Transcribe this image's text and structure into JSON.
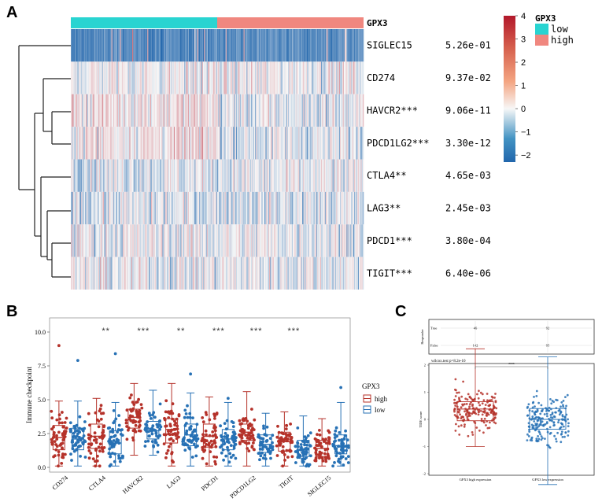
{
  "chart_data": [
    {
      "panel": "A",
      "type": "heatmap",
      "annotation_title": "GPX3",
      "annotation_legend": [
        {
          "label": "low",
          "color": "#29d4d1"
        },
        {
          "label": "high",
          "color": "#f0877f"
        }
      ],
      "rows": [
        {
          "label": "SIGLEC15",
          "pvalue": "5.26e-01"
        },
        {
          "label": "CD274",
          "pvalue": "9.37e-02"
        },
        {
          "label": "HAVCR2***",
          "pvalue": "9.06e-11"
        },
        {
          "label": "PDCD1LG2***",
          "pvalue": "3.30e-12"
        },
        {
          "label": "CTLA4**",
          "pvalue": "4.65e-03"
        },
        {
          "label": "LAG3**",
          "pvalue": "2.45e-03"
        },
        {
          "label": "PDCD1***",
          "pvalue": "3.80e-04"
        },
        {
          "label": "TIGIT***",
          "pvalue": "6.40e-06"
        }
      ],
      "color_scale": {
        "min": -2.3,
        "max": 4,
        "ticks": [
          "4",
          "3",
          "2",
          "1",
          "0",
          "−1",
          "−2"
        ],
        "low_color": "#2166ac",
        "mid_color": "#f7f7f7",
        "high_color": "#b2182b"
      },
      "row_means": [
        -1.6,
        0.1,
        0.2,
        0.15,
        -0.15,
        -0.25,
        0.0,
        -0.05
      ]
    },
    {
      "panel": "B",
      "type": "box",
      "ylabel": "Immune checkpoint",
      "y_ticks": [
        "0.0",
        "2.5",
        "5.0",
        "7.5",
        "10.0"
      ],
      "ylim": [
        0,
        10.5
      ],
      "legend_title": "GPX3",
      "legend": [
        {
          "label": "high",
          "color": "#b5322a"
        },
        {
          "label": "low",
          "color": "#2771b5"
        }
      ],
      "categories": [
        "CD274",
        "CTLA4",
        "HAVCR2",
        "LAG3",
        "PDCD1",
        "PDCD1LG2",
        "TIGIT",
        "SIGLEC15"
      ],
      "significance": [
        "",
        "**",
        "***",
        "**",
        "***",
        "***",
        "***",
        ""
      ],
      "series": [
        {
          "name": "high",
          "boxes": [
            {
              "whislo": 0.1,
              "q1": 1.3,
              "med": 2.2,
              "q3": 3.1,
              "whishi": 4.9,
              "max": 9.0
            },
            {
              "whislo": 0.1,
              "q1": 1.4,
              "med": 2.3,
              "q3": 3.2,
              "whishi": 5.1,
              "max": 5.1
            },
            {
              "whislo": 0.9,
              "q1": 2.9,
              "med": 3.7,
              "q3": 4.3,
              "whishi": 6.2,
              "max": 6.2
            },
            {
              "whislo": 0.1,
              "q1": 1.8,
              "med": 2.8,
              "q3": 3.6,
              "whishi": 6.2,
              "max": 6.2
            },
            {
              "whislo": 0.1,
              "q1": 1.5,
              "med": 2.3,
              "q3": 3.2,
              "whishi": 5.2,
              "max": 5.2
            },
            {
              "whislo": 0.1,
              "q1": 2.0,
              "med": 2.6,
              "q3": 3.2,
              "whishi": 5.6,
              "max": 5.6
            },
            {
              "whislo": 0.1,
              "q1": 1.2,
              "med": 1.9,
              "q3": 2.6,
              "whishi": 4.1,
              "max": 4.1
            },
            {
              "whislo": 0.1,
              "q1": 0.8,
              "med": 1.4,
              "q3": 2.0,
              "whishi": 3.6,
              "max": 3.6
            }
          ]
        },
        {
          "name": "low",
          "boxes": [
            {
              "whislo": 0.1,
              "q1": 1.3,
              "med": 2.1,
              "q3": 2.9,
              "whishi": 4.9,
              "max": 7.9
            },
            {
              "whislo": 0.1,
              "q1": 1.0,
              "med": 1.8,
              "q3": 2.7,
              "whishi": 4.8,
              "max": 8.4
            },
            {
              "whislo": 0.9,
              "q1": 2.1,
              "med": 2.7,
              "q3": 3.4,
              "whishi": 5.7,
              "max": 5.7
            },
            {
              "whislo": 0.1,
              "q1": 1.6,
              "med": 2.4,
              "q3": 3.2,
              "whishi": 5.5,
              "max": 6.9
            },
            {
              "whislo": 0.1,
              "q1": 1.3,
              "med": 2.1,
              "q3": 2.8,
              "whishi": 4.8,
              "max": 5.1
            },
            {
              "whislo": 0.1,
              "q1": 1.1,
              "med": 1.7,
              "q3": 2.4,
              "whishi": 4.0,
              "max": 4.0
            },
            {
              "whislo": 0.1,
              "q1": 0.8,
              "med": 1.3,
              "q3": 2.0,
              "whishi": 3.8,
              "max": 3.8
            },
            {
              "whislo": 0.1,
              "q1": 1.0,
              "med": 1.6,
              "q3": 2.4,
              "whishi": 4.8,
              "max": 5.9
            }
          ]
        }
      ]
    },
    {
      "panel": "C",
      "type": "box",
      "top_table": {
        "ylabel": "Responder",
        "rows": [
          "True",
          "False"
        ],
        "cols": [
          "GPX3 high expression",
          "GPX3 low expression"
        ],
        "values": [
          [
            "46",
            "92"
          ],
          [
            "142",
            "95"
          ]
        ]
      },
      "test_label": "wilcox.test p=8.2e-10",
      "significance": "****",
      "ylabel": "TIDE score",
      "y_ticks": [
        "2",
        "1",
        "0",
        "-1",
        "-2"
      ],
      "ylim": [
        -2.5,
        2.9
      ],
      "categories": [
        "GPX3 high expression",
        "GPX3 low expression"
      ],
      "colors": [
        "#b5322a",
        "#2771b5"
      ],
      "boxes": [
        {
          "whislo": -1.0,
          "q1": -0.05,
          "med": 0.38,
          "q3": 0.65,
          "whishi": 2.6
        },
        {
          "whislo": -2.4,
          "q1": -0.36,
          "med": 0.0,
          "q3": 0.4,
          "whishi": 2.3
        }
      ]
    }
  ],
  "panel_letters": [
    "A",
    "B",
    "C"
  ]
}
